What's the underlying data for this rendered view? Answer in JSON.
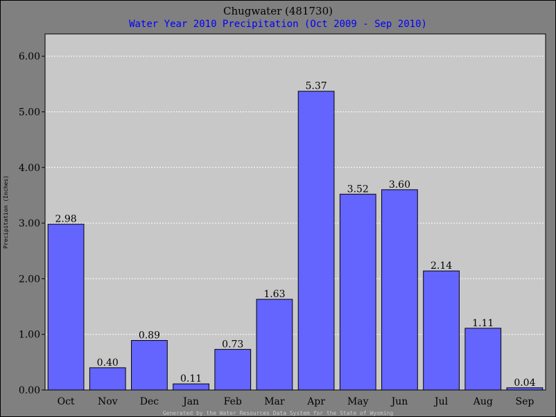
{
  "chart_data": {
    "type": "bar",
    "title": "Chugwater (481730)",
    "subtitle": "Water Year 2010 Precipitation (Oct 2009 - Sep 2010)",
    "ylabel": "Precipitation (Inches)",
    "xlabel": "",
    "categories": [
      "Oct",
      "Nov",
      "Dec",
      "Jan",
      "Feb",
      "Mar",
      "Apr",
      "May",
      "Jun",
      "Jul",
      "Aug",
      "Sep"
    ],
    "values": [
      2.98,
      0.4,
      0.89,
      0.11,
      0.73,
      1.63,
      5.37,
      3.52,
      3.6,
      2.14,
      1.11,
      0.04
    ],
    "value_labels": [
      "2.98",
      "0.40",
      "0.89",
      "0.11",
      "0.73",
      "1.63",
      "5.37",
      "3.52",
      "3.60",
      "2.14",
      "1.11",
      "0.04"
    ],
    "ylim": [
      0,
      6.4
    ],
    "yticks": [
      0,
      1,
      2,
      3,
      4,
      5,
      6
    ],
    "ytick_labels": [
      "0.00",
      "1.00",
      "2.00",
      "3.00",
      "4.00",
      "5.00",
      "6.00"
    ],
    "grid": true,
    "bar_color": "#6464ff",
    "plot_bg": "#c8c8c8",
    "legend": "none"
  },
  "footer": "Generated by the Water Resources Data System for the State of Wyoming"
}
